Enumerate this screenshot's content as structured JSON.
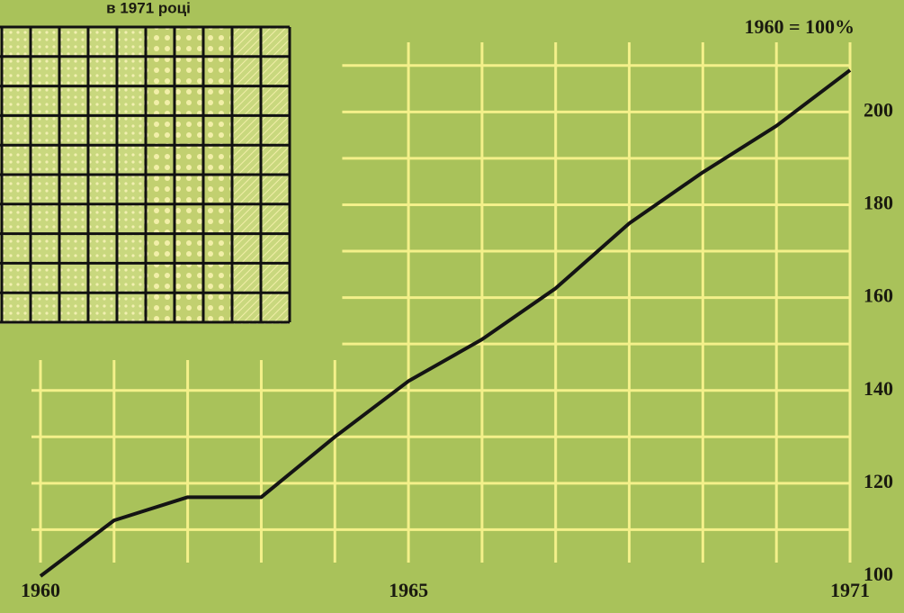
{
  "chart_data": {
    "type": "line",
    "inset_title": "в 1971 році",
    "note": "1960 = 100%",
    "categories": [
      "1960",
      null,
      null,
      null,
      null,
      "1965",
      null,
      null,
      null,
      null,
      null,
      "1971"
    ],
    "series": [
      {
        "color": "#141414",
        "values": [
          100,
          112,
          117,
          117,
          130,
          142,
          151,
          162,
          176,
          187,
          197,
          209
        ]
      }
    ],
    "ylim": [
      100,
      215
    ],
    "yticks": [
      100,
      120,
      140,
      160,
      180,
      200
    ],
    "minor_yticks": [
      110,
      130,
      150,
      170,
      190,
      210
    ],
    "grid": true
  }
}
